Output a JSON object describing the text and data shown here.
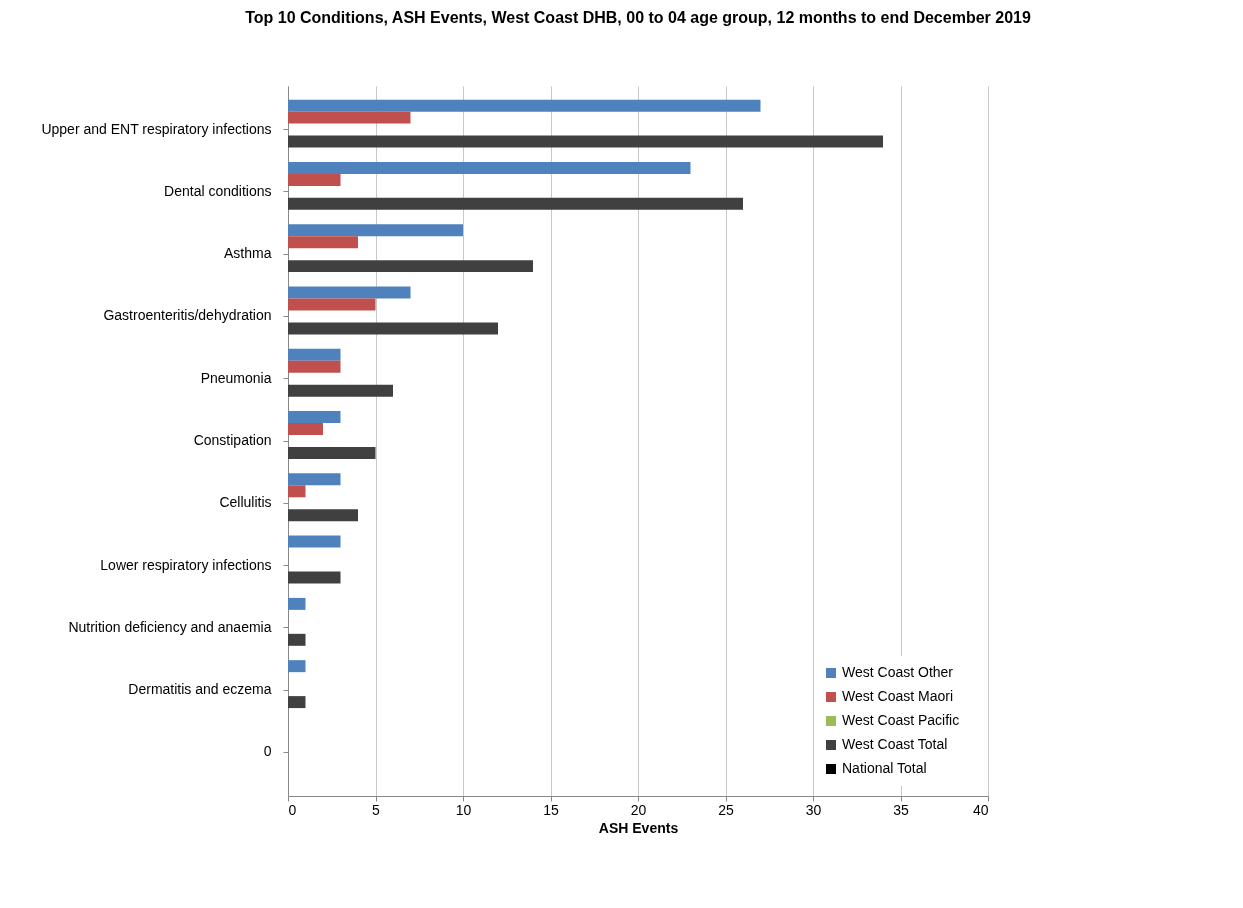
{
  "chart_data": {
    "type": "bar",
    "orientation": "horizontal",
    "title": "Top 10 Conditions, ASH Events, West Coast DHB, 00 to 04 age group, 12 months to end December 2019",
    "xlabel": "ASH Events",
    "categories": [
      "Upper and ENT respiratory infections",
      "Dental conditions",
      "Asthma",
      "Gastroenteritis/dehydration",
      "Pneumonia",
      "Constipation",
      "Cellulitis",
      "Lower respiratory infections",
      "Nutrition deficiency and anaemia",
      "Dermatitis and eczema",
      "0"
    ],
    "series": [
      {
        "name": "West Coast   Other",
        "color": "#4f81bd",
        "values": [
          27,
          23,
          10,
          7,
          3,
          3,
          3,
          3,
          1,
          1,
          null
        ]
      },
      {
        "name": "West Coast   Maori",
        "color": "#c0504d",
        "values": [
          7,
          3,
          4,
          5,
          3,
          2,
          1,
          null,
          null,
          null,
          null
        ]
      },
      {
        "name": "West Coast   Pacific",
        "color": "#9bbb59",
        "values": [
          null,
          null,
          null,
          null,
          null,
          null,
          null,
          null,
          null,
          null,
          null
        ]
      },
      {
        "name": "West Coast   Total",
        "color": "#404040",
        "values": [
          34,
          26,
          14,
          12,
          6,
          5,
          4,
          3,
          1,
          1,
          null
        ]
      },
      {
        "name": "National Total",
        "color": "#000000",
        "values": [
          null,
          null,
          null,
          null,
          null,
          null,
          null,
          null,
          null,
          null,
          null
        ]
      }
    ],
    "xlim": [
      0,
      40
    ],
    "xticks": [
      0,
      5,
      10,
      15,
      20,
      25,
      30,
      35,
      40
    ],
    "grid": "x",
    "legend": "bottom right"
  }
}
